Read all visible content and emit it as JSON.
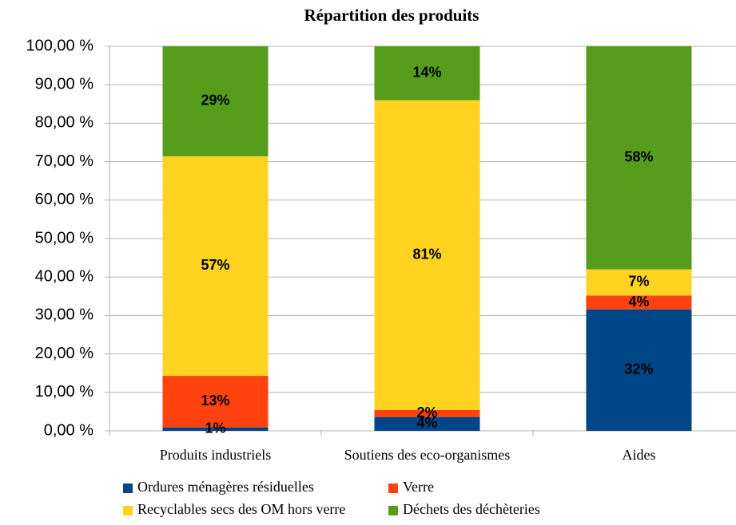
{
  "chart_data": {
    "type": "stacked_bar",
    "title": "Répartition des produits",
    "categories": [
      "Produits industriels",
      "Soutiens des eco-organismes",
      "Aides"
    ],
    "series": [
      {
        "name": "Ordures ménagères résiduelles",
        "color": "#004586",
        "values": [
          0.9,
          3.6,
          31.6
        ],
        "value_labels": [
          "1%",
          "4%",
          "32%"
        ]
      },
      {
        "name": "Verre",
        "color": "#ff420e",
        "values": [
          13.4,
          1.8,
          3.6
        ],
        "value_labels": [
          "13%",
          "2%",
          "4%"
        ]
      },
      {
        "name": "Recyclables secs des OM hors verre",
        "color": "#ffd320",
        "values": [
          57.1,
          80.6,
          6.8
        ],
        "value_labels": [
          "57%",
          "81%",
          "7%"
        ]
      },
      {
        "name": "Déchets des déchèteries",
        "color": "#579d1c",
        "values": [
          28.6,
          14,
          58
        ],
        "value_labels": [
          "29%",
          "14%",
          "58%"
        ]
      }
    ],
    "ylim": [
      0,
      100
    ],
    "yticks": [
      {
        "value": 0,
        "label": "0,00 %"
      },
      {
        "value": 10,
        "label": "10,00 %"
      },
      {
        "value": 20,
        "label": "20,00 %"
      },
      {
        "value": 30,
        "label": "30,00 %"
      },
      {
        "value": 40,
        "label": "40,00 %"
      },
      {
        "value": 50,
        "label": "50,00 %"
      },
      {
        "value": 60,
        "label": "60,00 %"
      },
      {
        "value": 70,
        "label": "70,00 %"
      },
      {
        "value": 80,
        "label": "80,00 %"
      },
      {
        "value": 90,
        "label": "90,00 %"
      },
      {
        "value": 100,
        "label": "100,00 %"
      }
    ],
    "grid": true
  }
}
